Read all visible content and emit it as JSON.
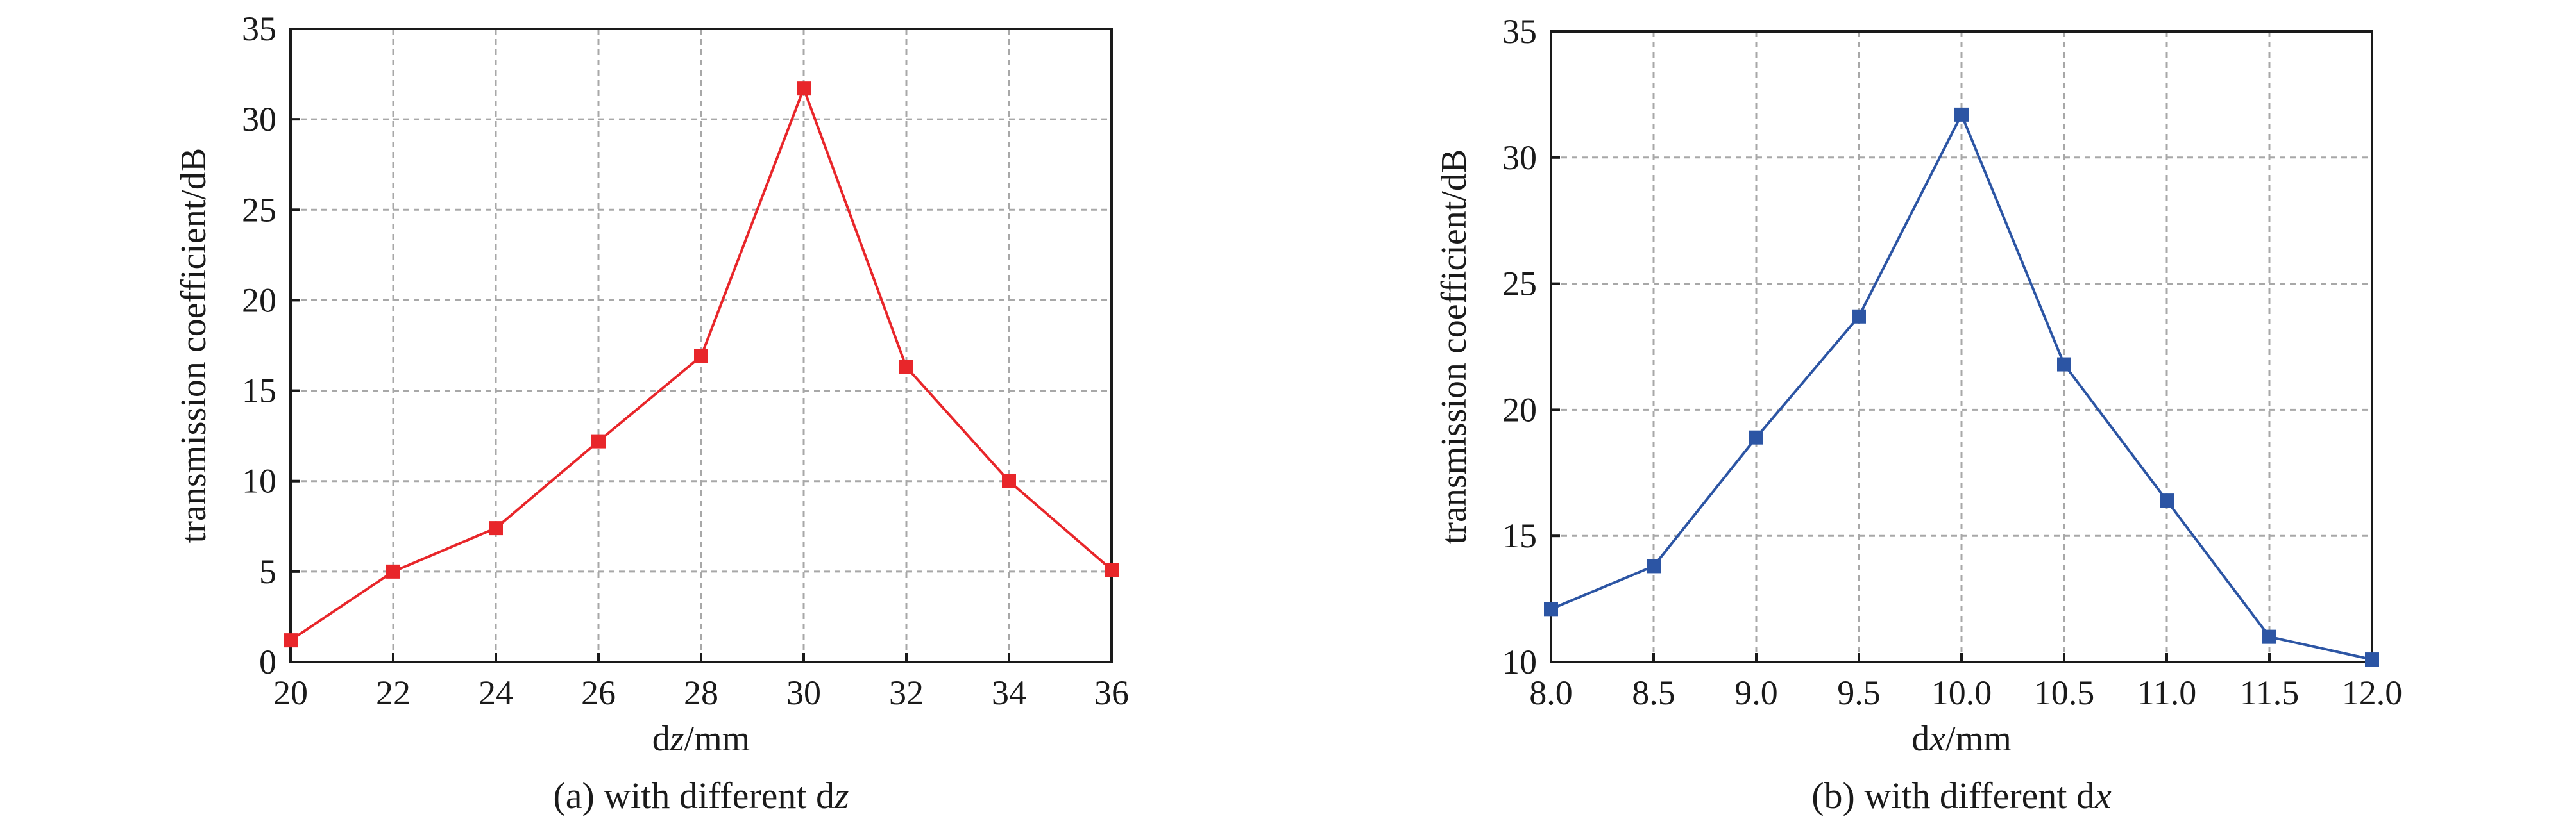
{
  "chart_data": [
    {
      "type": "line",
      "xlabel": "dz/mm",
      "xlabel_parts": [
        {
          "t": "d",
          "i": false
        },
        {
          "t": "z",
          "i": true
        },
        {
          "t": "/mm",
          "i": false
        }
      ],
      "ylabel": "transmission coefficient/dB",
      "caption": "(a) with different dz",
      "caption_parts": [
        {
          "t": "(a) with different d",
          "i": false
        },
        {
          "t": "z",
          "i": true
        }
      ],
      "xlim": [
        20,
        36
      ],
      "ylim": [
        0,
        35
      ],
      "xticks": [
        "20",
        "22",
        "24",
        "26",
        "28",
        "30",
        "32",
        "34",
        "36"
      ],
      "yticks": [
        "0",
        "5",
        "10",
        "15",
        "20",
        "25",
        "30",
        "35"
      ],
      "grid": true,
      "legend": "none",
      "color": "#e8262a",
      "marker": "square",
      "series": [
        {
          "x": [
            20,
            22,
            24,
            26,
            28,
            30,
            32,
            34,
            36
          ],
          "values": [
            1.2,
            5.0,
            7.4,
            12.2,
            16.9,
            31.7,
            16.3,
            10.0,
            5.1
          ]
        }
      ]
    },
    {
      "type": "line",
      "xlabel": "dx/mm",
      "xlabel_parts": [
        {
          "t": "d",
          "i": false
        },
        {
          "t": "x",
          "i": true
        },
        {
          "t": "/mm",
          "i": false
        }
      ],
      "ylabel": "transmission coefficient/dB",
      "caption": "(b) with different dx",
      "caption_parts": [
        {
          "t": "(b) with different d",
          "i": false
        },
        {
          "t": "x",
          "i": true
        }
      ],
      "xlim": [
        8.0,
        12.0
      ],
      "ylim": [
        10,
        35
      ],
      "xticks": [
        "8.0",
        "8.5",
        "9.0",
        "9.5",
        "10.0",
        "10.5",
        "11.0",
        "11.5",
        "12.0"
      ],
      "yticks": [
        "10",
        "15",
        "20",
        "25",
        "30",
        "35"
      ],
      "grid": true,
      "legend": "none",
      "color": "#2c55a4",
      "marker": "square",
      "series": [
        {
          "x": [
            8.0,
            8.5,
            9.0,
            9.5,
            10.0,
            10.5,
            11.0,
            11.5,
            12.0
          ],
          "values": [
            12.1,
            13.8,
            18.9,
            23.7,
            31.7,
            21.8,
            16.4,
            11.0,
            10.1
          ]
        }
      ]
    }
  ]
}
